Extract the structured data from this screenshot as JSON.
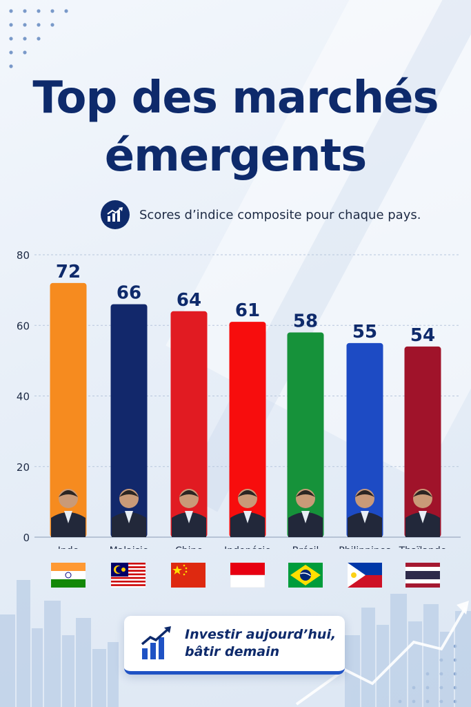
{
  "title": "Top des marchés émergents",
  "subtitle": "Scores d’indice composite pour chaque pays.",
  "footer_cta": {
    "line1": "Investir aujourd’hui,",
    "line2": "bâtir demain"
  },
  "icons": {
    "subtitle_icon": "rising-chart-icon",
    "cta_icon": "rising-bar-chart-icon"
  },
  "chart_data": {
    "type": "bar",
    "title": "Top des marchés émergents",
    "subtitle": "Scores d’indice composite pour chaque pays.",
    "categories": [
      "Inde",
      "Malaisie",
      "Chine",
      "Indonésie",
      "Brésil",
      "Philippines",
      "Thaïlande"
    ],
    "values": [
      72,
      66,
      64,
      61,
      58,
      55,
      54
    ],
    "colors": [
      "#f68b1f",
      "#12286b",
      "#e11b22",
      "#f70d0d",
      "#16923a",
      "#1d4bc4",
      "#a0132a"
    ],
    "ylim": [
      0,
      80
    ],
    "yticks": [
      0,
      20,
      40,
      60,
      80
    ],
    "grid": true,
    "data_labels": true,
    "flags": [
      "flag-india-icon",
      "flag-malaysia-icon",
      "flag-china-icon",
      "flag-indonesia-icon",
      "flag-brazil-icon",
      "flag-philippines-icon",
      "flag-thailand-icon"
    ],
    "portraits": [
      "portrait-leader-icon",
      "portrait-leader-icon",
      "portrait-leader-icon",
      "portrait-leader-icon",
      "portrait-leader-icon",
      "portrait-leader-icon",
      "portrait-leader-icon"
    ]
  }
}
